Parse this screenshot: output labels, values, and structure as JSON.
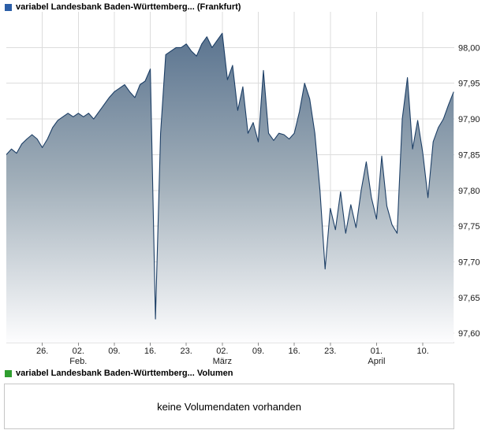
{
  "header": {
    "title": "variabel Landesbank Baden-Württemberg... (Frankfurt)",
    "legend_color": "#2b5ea7"
  },
  "volume": {
    "legend_label": "variabel Landesbank Baden-Württemberg... Volumen",
    "legend_color": "#2f9e2f",
    "empty_message": "keine Volumendaten vorhanden"
  },
  "chart_data": {
    "type": "area",
    "title": "variabel Landesbank Baden-Württemberg... (Frankfurt)",
    "xlabel": "",
    "ylabel": "",
    "ylim": [
      97.587,
      98.05
    ],
    "grid": true,
    "legend_position": "top-left",
    "y_ticks": [
      98.0,
      97.95,
      97.9,
      97.85,
      97.8,
      97.75,
      97.7,
      97.65,
      97.6
    ],
    "y_tick_labels": [
      "98,00",
      "97,95",
      "97,90",
      "97,85",
      "97,80",
      "97,75",
      "97,70",
      "97,65",
      "97,60"
    ],
    "x_unit": "days-from-left-edge",
    "x_domain_days": [
      0,
      88
    ],
    "x_ticks": [
      {
        "day": 7,
        "label": "26."
      },
      {
        "day": 14,
        "label": "02."
      },
      {
        "day": 21,
        "label": "09."
      },
      {
        "day": 28,
        "label": "16."
      },
      {
        "day": 35,
        "label": "23."
      },
      {
        "day": 42,
        "label": "02."
      },
      {
        "day": 49,
        "label": "09."
      },
      {
        "day": 56,
        "label": "16."
      },
      {
        "day": 63,
        "label": "23."
      },
      {
        "day": 72,
        "label": "01."
      },
      {
        "day": 81,
        "label": "10."
      }
    ],
    "month_labels": [
      {
        "day": 14,
        "label": "Feb."
      },
      {
        "day": 42,
        "label": "März"
      },
      {
        "day": 72,
        "label": "April"
      }
    ],
    "series": [
      {
        "name": "variabel Landesbank Baden-Württemberg...",
        "x_start_day": 0,
        "x_step_days": 1,
        "values": [
          97.85,
          97.858,
          97.852,
          97.865,
          97.872,
          97.878,
          97.872,
          97.86,
          97.872,
          97.888,
          97.898,
          97.903,
          97.908,
          97.903,
          97.908,
          97.903,
          97.908,
          97.9,
          97.91,
          97.92,
          97.93,
          97.938,
          97.943,
          97.948,
          97.938,
          97.93,
          97.948,
          97.953,
          97.97,
          97.62,
          97.88,
          97.99,
          97.995,
          98.0,
          98.0,
          98.005,
          97.995,
          97.988,
          98.005,
          98.015,
          98.0,
          98.01,
          98.02,
          97.955,
          97.975,
          97.912,
          97.945,
          97.88,
          97.895,
          97.868,
          97.968,
          97.88,
          97.87,
          97.88,
          97.878,
          97.872,
          97.88,
          97.91,
          97.95,
          97.928,
          97.88,
          97.8,
          97.69,
          97.775,
          97.745,
          97.798,
          97.74,
          97.78,
          97.748,
          97.8,
          97.84,
          97.79,
          97.76,
          97.848,
          97.778,
          97.752,
          97.74,
          97.9,
          97.958,
          97.858,
          97.898,
          97.852,
          97.79,
          97.868,
          97.888,
          97.9,
          97.92,
          97.938
        ]
      }
    ],
    "colors": {
      "line": "#1d3f66",
      "area_top": "#506b89",
      "area_mid": "#9fadb8",
      "area_bottom": "#fdfdfe",
      "grid": "#dcdcdc",
      "axis": "#c8c8c8",
      "tick": "#8c8c8c"
    }
  }
}
